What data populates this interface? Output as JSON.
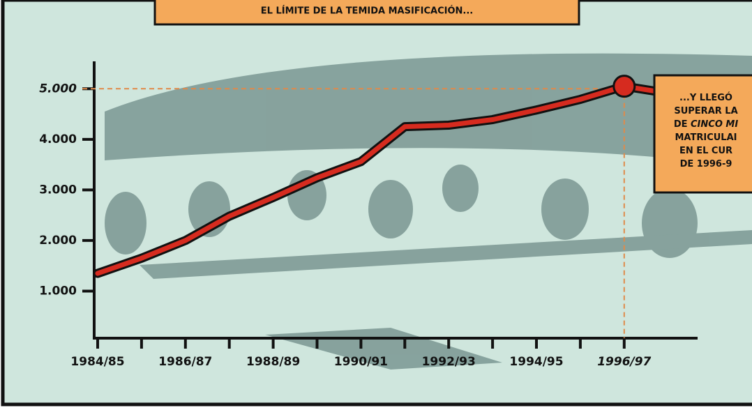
{
  "chart_data": {
    "type": "line",
    "banner": "EL LÍMITE DE LA TEMIDA MASIFICACIÓN...",
    "annotation": [
      [
        {
          "text": "...Y LLEGÓ"
        }
      ],
      [
        {
          "text": "SUPERAR LA"
        }
      ],
      [
        {
          "text": "DE "
        },
        {
          "text": "CINCO MI",
          "italic": true
        }
      ],
      [
        {
          "text": "MATRICULAI"
        }
      ],
      [
        {
          "text": "EN EL CUR"
        }
      ],
      [
        {
          "text": "DE 1996-9"
        }
      ]
    ],
    "categories": [
      "1984/85",
      null,
      "1986/87",
      null,
      "1988/89",
      null,
      "1990/91",
      null,
      "1992/93",
      null,
      "1994/95",
      null,
      "1996/97"
    ],
    "values": [
      1350,
      1650,
      2000,
      2480,
      2850,
      3240,
      3560,
      4250,
      4280,
      4390,
      4580,
      4790,
      5050
    ],
    "color": "#d62b1f",
    "ylim": [
      0,
      5500
    ],
    "yticks": [
      {
        "value": 1000,
        "label": "1.000"
      },
      {
        "value": 2000,
        "label": "2.000"
      },
      {
        "value": 3000,
        "label": "3.000"
      },
      {
        "value": 4000,
        "label": "4.000"
      },
      {
        "value": 5000,
        "label": "5.000",
        "color": "#d62b1f"
      }
    ],
    "x_highlight": {
      "index": 12,
      "color": "#d62b1f"
    },
    "reference_color": "#e08a4a"
  }
}
